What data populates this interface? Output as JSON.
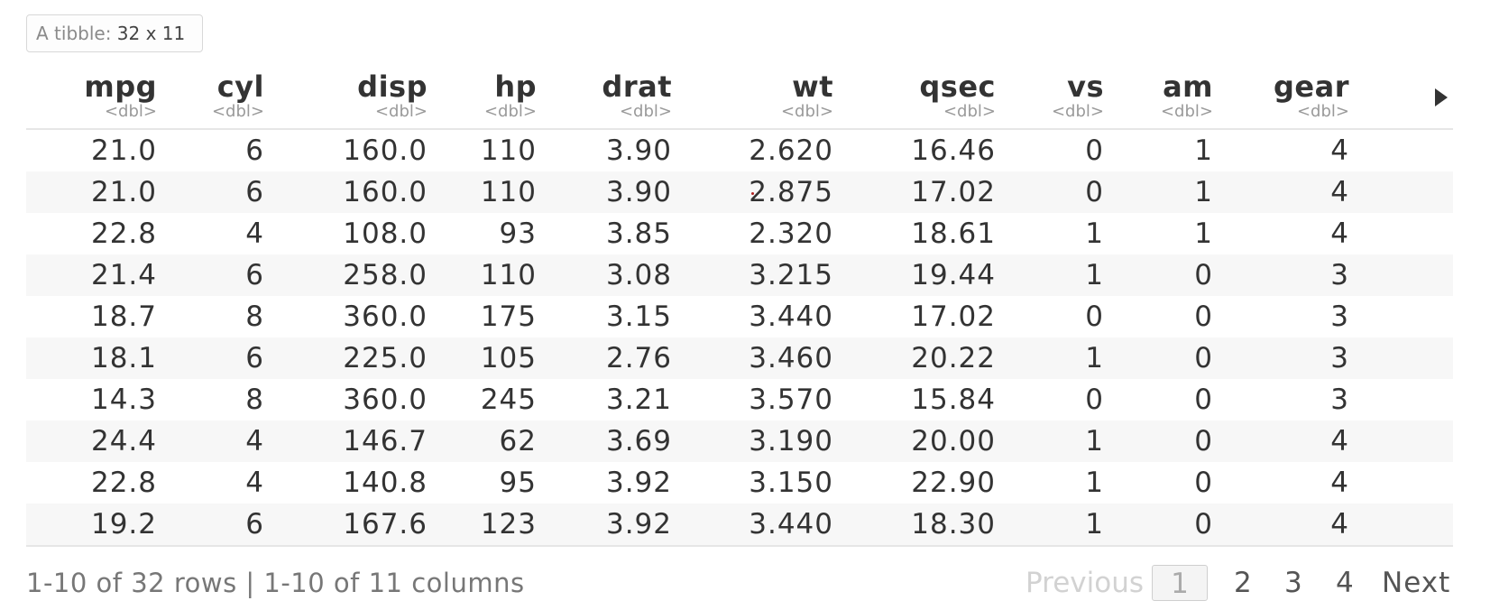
{
  "tibble": {
    "prefix": "A tibble:",
    "dims": "32 x 11"
  },
  "columns": [
    {
      "name": "mpg",
      "type": "<dbl>"
    },
    {
      "name": "cyl",
      "type": "<dbl>"
    },
    {
      "name": "disp",
      "type": "<dbl>"
    },
    {
      "name": "hp",
      "type": "<dbl>"
    },
    {
      "name": "drat",
      "type": "<dbl>"
    },
    {
      "name": "wt",
      "type": "<dbl>"
    },
    {
      "name": "qsec",
      "type": "<dbl>"
    },
    {
      "name": "vs",
      "type": "<dbl>"
    },
    {
      "name": "am",
      "type": "<dbl>"
    },
    {
      "name": "gear",
      "type": "<dbl>"
    }
  ],
  "rows": [
    [
      "21.0",
      "6",
      "160.0",
      "110",
      "3.90",
      "2.620",
      "16.46",
      "0",
      "1",
      "4"
    ],
    [
      "21.0",
      "6",
      "160.0",
      "110",
      "3.90",
      "2.875",
      "17.02",
      "0",
      "1",
      "4"
    ],
    [
      "22.8",
      "4",
      "108.0",
      "93",
      "3.85",
      "2.320",
      "18.61",
      "1",
      "1",
      "4"
    ],
    [
      "21.4",
      "6",
      "258.0",
      "110",
      "3.08",
      "3.215",
      "19.44",
      "1",
      "0",
      "3"
    ],
    [
      "18.7",
      "8",
      "360.0",
      "175",
      "3.15",
      "3.440",
      "17.02",
      "0",
      "0",
      "3"
    ],
    [
      "18.1",
      "6",
      "225.0",
      "105",
      "2.76",
      "3.460",
      "20.22",
      "1",
      "0",
      "3"
    ],
    [
      "14.3",
      "8",
      "360.0",
      "245",
      "3.21",
      "3.570",
      "15.84",
      "0",
      "0",
      "3"
    ],
    [
      "24.4",
      "4",
      "146.7",
      "62",
      "3.69",
      "3.190",
      "20.00",
      "1",
      "0",
      "4"
    ],
    [
      "22.8",
      "4",
      "140.8",
      "95",
      "3.92",
      "3.150",
      "22.90",
      "1",
      "0",
      "4"
    ],
    [
      "19.2",
      "6",
      "167.6",
      "123",
      "3.92",
      "3.440",
      "18.30",
      "1",
      "0",
      "4"
    ]
  ],
  "footer": {
    "info": "1-10 of 32 rows | 1-10 of 11 columns"
  },
  "pager": {
    "previous": "Previous",
    "pages": [
      "1",
      "2",
      "3",
      "4"
    ],
    "current": "1",
    "next": "Next"
  }
}
